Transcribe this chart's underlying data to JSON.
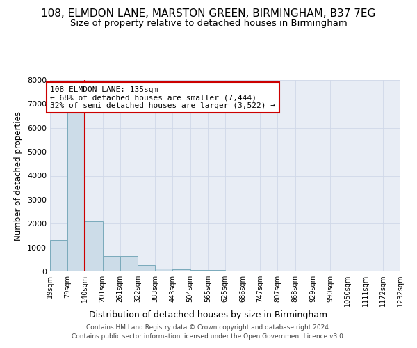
{
  "title": "108, ELMDON LANE, MARSTON GREEN, BIRMINGHAM, B37 7EG",
  "subtitle": "Size of property relative to detached houses in Birmingham",
  "xlabel": "Distribution of detached houses by size in Birmingham",
  "ylabel": "Number of detached properties",
  "footer_line1": "Contains HM Land Registry data © Crown copyright and database right 2024.",
  "footer_line2": "Contains public sector information licensed under the Open Government Licence v3.0.",
  "bar_edges": [
    19,
    79,
    140,
    201,
    261,
    322,
    383,
    443,
    504,
    565,
    625,
    686,
    747,
    807,
    868,
    929,
    990,
    1050,
    1111,
    1172,
    1232
  ],
  "bar_heights": [
    1310,
    6620,
    2090,
    650,
    650,
    265,
    130,
    100,
    60,
    60,
    0,
    0,
    0,
    0,
    0,
    0,
    0,
    0,
    0,
    0
  ],
  "bar_color": "#ccdce8",
  "bar_edge_color": "#7aaabb",
  "ylim": [
    0,
    8000
  ],
  "yticks": [
    0,
    1000,
    2000,
    3000,
    4000,
    5000,
    6000,
    7000,
    8000
  ],
  "property_line_x": 140,
  "annotation_line1": "108 ELMDON LANE: 135sqm",
  "annotation_line2": "← 68% of detached houses are smaller (7,444)",
  "annotation_line3": "32% of semi-detached houses are larger (3,522) →",
  "grid_color": "#d0d8e8",
  "bg_color": "#e8edf5",
  "vline_color": "#cc0000",
  "annotation_box_color": "#cc0000",
  "title_fontsize": 11,
  "subtitle_fontsize": 9.5,
  "tick_label_fontsize": 7,
  "ylabel_fontsize": 8.5,
  "xlabel_fontsize": 9,
  "annotation_fontsize": 8
}
